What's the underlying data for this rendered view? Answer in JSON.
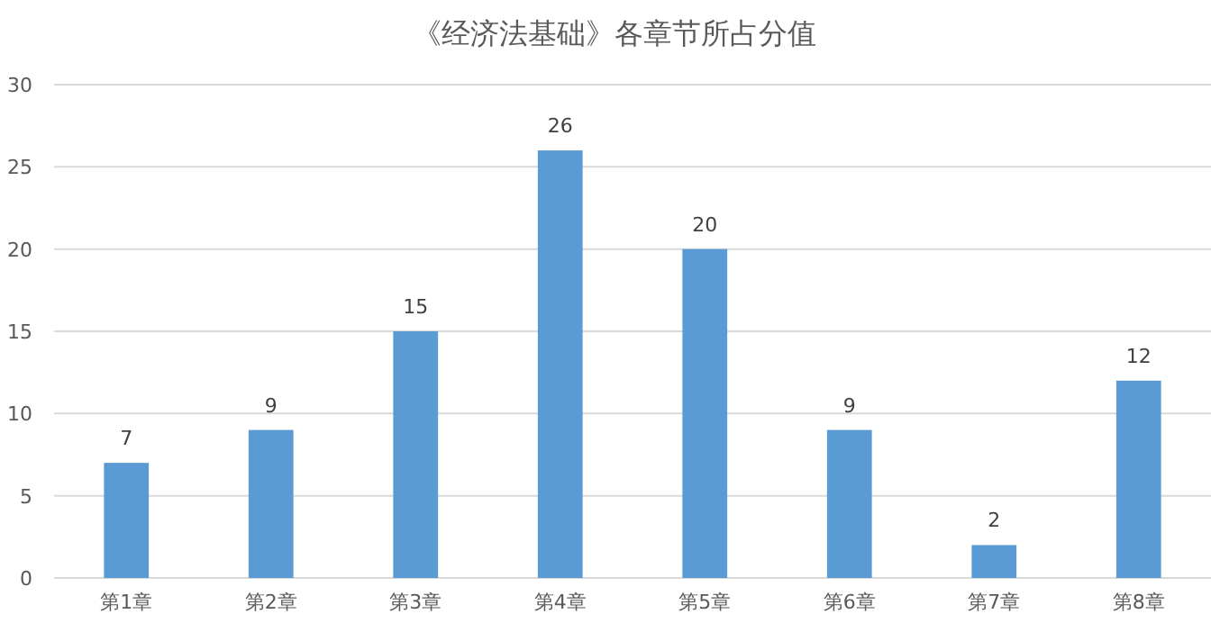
{
  "chart_data": {
    "type": "bar",
    "title": "《经济法基础》各章节所占分值",
    "categories": [
      "第1章",
      "第2章",
      "第3章",
      "第4章",
      "第5章",
      "第6章",
      "第7章",
      "第8章"
    ],
    "values": [
      7,
      9,
      15,
      26,
      20,
      9,
      2,
      12
    ],
    "color": "#5b9bd5",
    "ylim": [
      0,
      30
    ],
    "yticks": [
      0,
      5,
      10,
      15,
      20,
      25,
      30
    ],
    "grid": "y",
    "data_labels": true
  }
}
